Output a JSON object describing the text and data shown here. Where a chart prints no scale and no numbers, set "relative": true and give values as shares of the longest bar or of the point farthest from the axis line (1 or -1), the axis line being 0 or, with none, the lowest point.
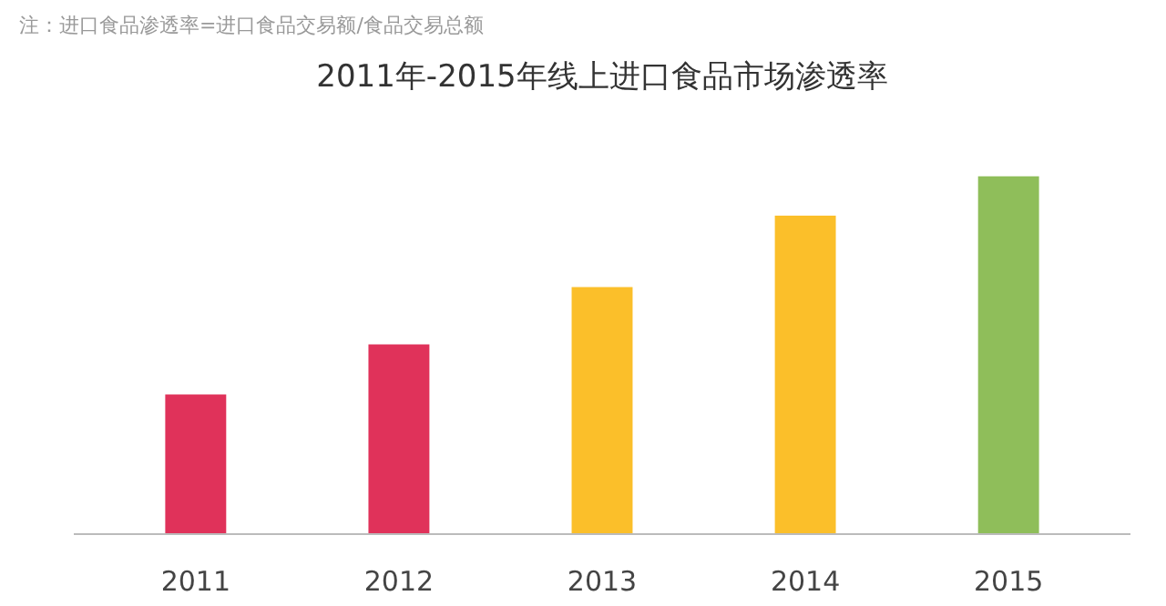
{
  "chart_data": {
    "type": "bar",
    "title": "2011年-2015年线上进口食品市场渗透率",
    "annotations": [
      "注：进口食品渗透率=进口食品交易额/食品交易总额"
    ],
    "relative": true,
    "categories": [
      "2011",
      "2012",
      "2013",
      "2014",
      "2015"
    ],
    "values": [
      0.39,
      0.53,
      0.69,
      0.89,
      1
    ],
    "colors": [
      "#e0325a",
      "#e0325a",
      "#fbbf2a",
      "#fbbf2a",
      "#8fbe5a"
    ],
    "grid": false
  }
}
